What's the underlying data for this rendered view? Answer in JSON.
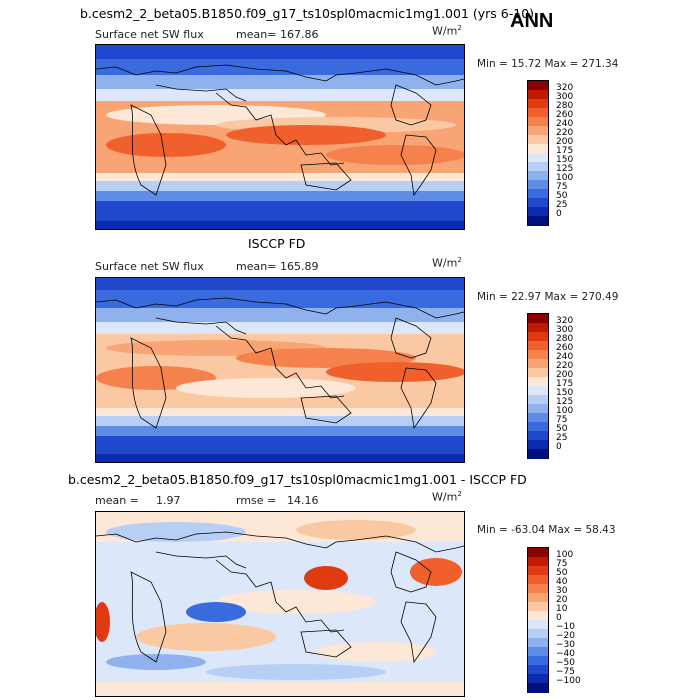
{
  "ann_label": "ANN",
  "panels": [
    {
      "title": "b.cesm2_2_beta05.B1850.f09_g17_ts10spl0macmic1mg1.001 (yrs 6-10)",
      "variable": "Surface net SW flux",
      "stat_label": "mean=",
      "stat_value": "167.86",
      "units": "W/m",
      "units_exp": "2",
      "minmax": "Min =  15.72 Max = 271.34",
      "colorbar_ticks": [
        "320",
        "300",
        "280",
        "260",
        "240",
        "220",
        "200",
        "175",
        "150",
        "125",
        "100",
        "75",
        "50",
        "25",
        "0"
      ]
    },
    {
      "title": "ISCCP FD",
      "variable": "Surface net SW flux",
      "stat_label": "mean=",
      "stat_value": "165.89",
      "units": "W/m",
      "units_exp": "2",
      "minmax": "Min =  22.97 Max = 270.49",
      "colorbar_ticks": [
        "320",
        "300",
        "280",
        "260",
        "240",
        "220",
        "200",
        "175",
        "150",
        "125",
        "100",
        "75",
        "50",
        "25",
        "0"
      ]
    },
    {
      "title": "b.cesm2_2_beta05.B1850.f09_g17_ts10spl0macmic1mg1.001 - ISCCP FD",
      "mean_label": "mean =",
      "mean_value": "1.97",
      "rmse_label": "rmse =",
      "rmse_value": "14.16",
      "units": "W/m",
      "units_exp": "2",
      "minmax": "Min = -63.04 Max =  58.43",
      "colorbar_ticks": [
        "100",
        "75",
        "50",
        "40",
        "30",
        "20",
        "10",
        "0",
        "−10",
        "−20",
        "−30",
        "−40",
        "−50",
        "−75",
        "−100"
      ]
    }
  ],
  "colors": {
    "abs_scale": [
      "#8a0000",
      "#c01a00",
      "#e03a10",
      "#f0602c",
      "#f5824c",
      "#f8a474",
      "#fbc8a4",
      "#fde8d8",
      "#dce8fa",
      "#b8cff5",
      "#8fb2ee",
      "#5f8de6",
      "#3a6bde",
      "#1f48cc",
      "#0c2bb0",
      "#00107a"
    ],
    "diff_scale": [
      "#8a0000",
      "#c01a00",
      "#e03a10",
      "#f0602c",
      "#f5824c",
      "#f8a474",
      "#fbc8a4",
      "#fde8d8",
      "#dce8fa",
      "#b8cff5",
      "#8fb2ee",
      "#5f8de6",
      "#3a6bde",
      "#1f48cc",
      "#0c2bb0",
      "#00107a"
    ],
    "land": "none",
    "coast": "#000000"
  }
}
